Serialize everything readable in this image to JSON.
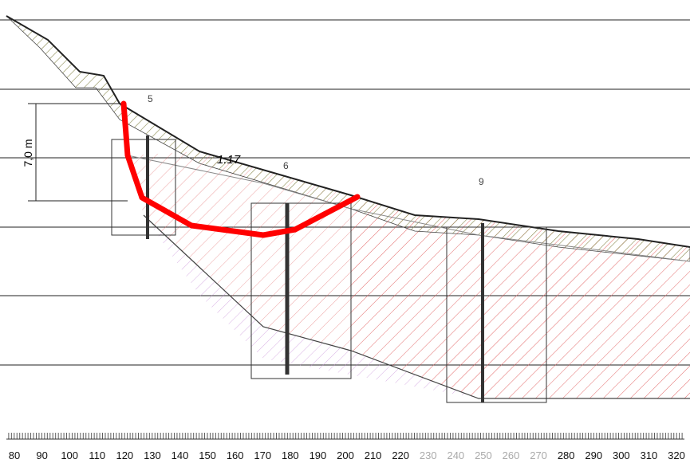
{
  "section_labels": [
    "5",
    "6",
    "9"
  ],
  "height_dimension": "7,0 m",
  "safety_factor": "1.17",
  "scale": {
    "labels": [
      80,
      90,
      100,
      110,
      120,
      130,
      140,
      150,
      160,
      170,
      180,
      190,
      200,
      210,
      220,
      230,
      240,
      250,
      260,
      270,
      280,
      290,
      300,
      310,
      320
    ]
  }
}
